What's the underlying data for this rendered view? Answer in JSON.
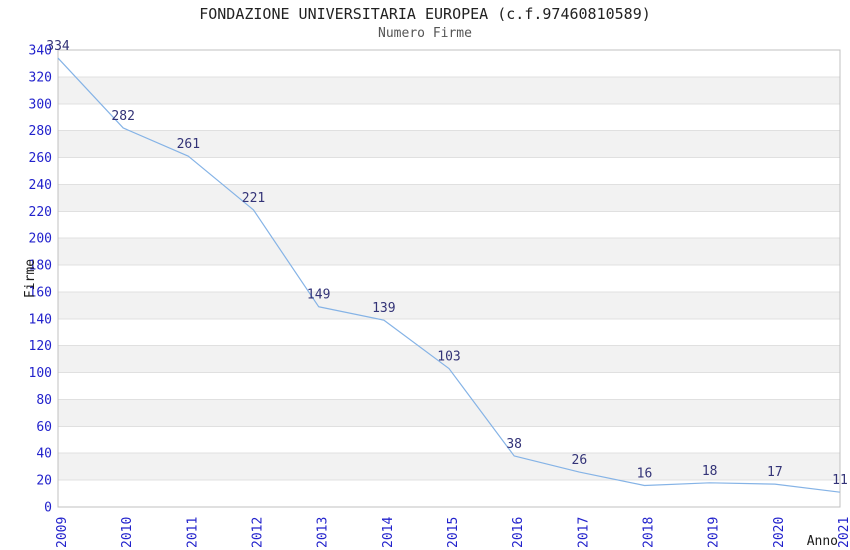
{
  "chart_data": {
    "type": "line",
    "title": "FONDAZIONE UNIVERSITARIA EUROPEA (c.f.97460810589)",
    "subtitle": "Numero Firme",
    "xlabel": "Anno",
    "ylabel": "Firme",
    "x": [
      "2009",
      "2010",
      "2011",
      "2012",
      "2013",
      "2014",
      "2015",
      "2016",
      "2017",
      "2018",
      "2019",
      "2020",
      "2021"
    ],
    "values": [
      334,
      282,
      261,
      221,
      149,
      139,
      103,
      38,
      26,
      16,
      18,
      17,
      11
    ],
    "ylim": [
      0,
      340
    ],
    "ytick_step": 20,
    "grid": true,
    "alternating_bands": true,
    "legend": "none",
    "point_labels_visible": true,
    "colors": {
      "line": "#85b3e6",
      "tick_label": "#2222cc",
      "value_label": "#333377",
      "band": "#f2f2f2",
      "grid": "#e0e0e0",
      "border": "#c0c0c0",
      "title": "#222222",
      "subtitle": "#555555",
      "axis_title": "#1a1a1a",
      "background": "#ffffff"
    }
  }
}
